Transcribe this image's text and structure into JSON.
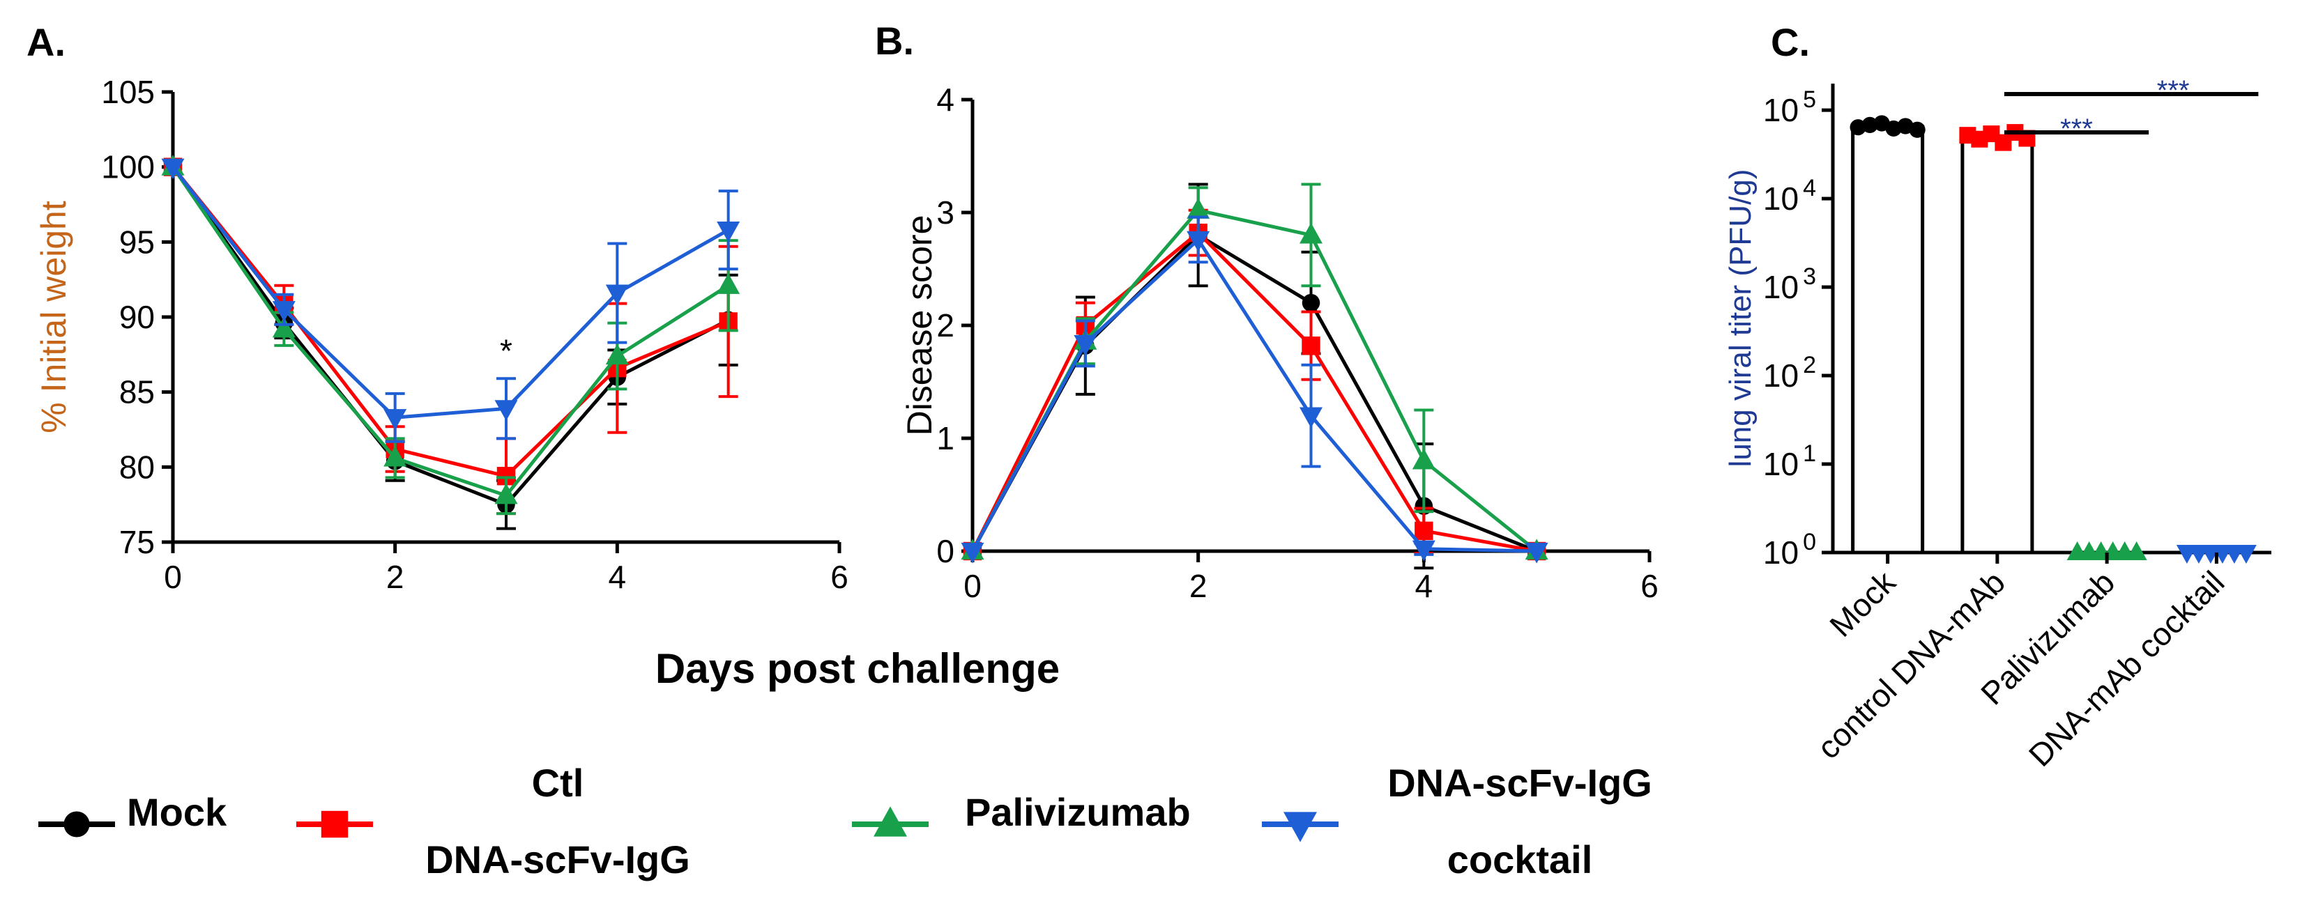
{
  "shared_xlabel": "Days post challenge",
  "legend": [
    {
      "key": "mock",
      "lines": [
        "Mock"
      ],
      "color": "#000000",
      "marker": "circle"
    },
    {
      "key": "ctl",
      "lines": [
        "Ctl",
        "DNA-scFv-IgG"
      ],
      "color": "#ff0000",
      "marker": "square"
    },
    {
      "key": "pali",
      "lines": [
        "Palivizumab"
      ],
      "color": "#18a04a",
      "marker": "triangle-up"
    },
    {
      "key": "cocktail",
      "lines": [
        "DNA-scFv-IgG",
        "cocktail"
      ],
      "color": "#1f5fd6",
      "marker": "triangle-down"
    }
  ],
  "chart_data": [
    {
      "panel": "A.",
      "type": "line",
      "ylabel": "% Initial weight",
      "ylabel_color": "#c4651a",
      "xlabel": "Days post challenge",
      "xlim": [
        0,
        6
      ],
      "ylim": [
        75,
        105
      ],
      "xticks": [
        0,
        2,
        4,
        6
      ],
      "yticks": [
        75,
        80,
        85,
        90,
        95,
        100,
        105
      ],
      "annotations": [
        {
          "text": "*",
          "x": 3,
          "y": 87
        }
      ],
      "x": [
        0,
        1,
        2,
        3,
        4,
        5
      ],
      "series": [
        {
          "name": "Mock",
          "color": "#000000",
          "marker": "circle",
          "values": [
            100,
            89.6,
            80.4,
            77.5,
            86.0,
            89.8
          ],
          "err": [
            0,
            1.0,
            1.3,
            1.6,
            1.8,
            3.0
          ]
        },
        {
          "name": "Ctl DNA-scFv-IgG",
          "color": "#ff0000",
          "marker": "square",
          "values": [
            100,
            90.8,
            81.2,
            79.4,
            86.6,
            89.7
          ],
          "err": [
            0,
            1.3,
            1.5,
            2.5,
            4.3,
            5.0
          ]
        },
        {
          "name": "Palivizumab",
          "color": "#18a04a",
          "marker": "triangle-up",
          "values": [
            100,
            89.2,
            80.6,
            78.1,
            87.4,
            92.1
          ],
          "err": [
            0,
            1.1,
            1.3,
            1.2,
            2.2,
            3.0
          ]
        },
        {
          "name": "DNA-scFv-IgG cocktail",
          "color": "#1f5fd6",
          "marker": "triangle-down",
          "values": [
            100,
            90.5,
            83.3,
            83.9,
            91.6,
            95.8
          ],
          "err": [
            0,
            1.0,
            1.6,
            2.0,
            3.3,
            2.6
          ]
        }
      ]
    },
    {
      "panel": "B.",
      "type": "line",
      "ylabel": "Disease score",
      "ylabel_color": "#000000",
      "xlabel": "Days post challenge",
      "xlim": [
        0,
        6
      ],
      "ylim": [
        0,
        4
      ],
      "xticks": [
        0,
        2,
        4,
        6
      ],
      "yticks": [
        0,
        1,
        2,
        3,
        4
      ],
      "x": [
        0,
        1,
        2,
        3,
        4,
        5
      ],
      "series": [
        {
          "name": "Mock",
          "color": "#000000",
          "marker": "circle",
          "values": [
            0,
            1.82,
            2.8,
            2.2,
            0.4,
            0
          ],
          "err": [
            0,
            0.43,
            0.45,
            0.45,
            0.55,
            0
          ]
        },
        {
          "name": "Ctl DNA-scFv-IgG",
          "color": "#ff0000",
          "marker": "square",
          "values": [
            0,
            2.0,
            2.82,
            1.82,
            0.18,
            0
          ],
          "err": [
            0,
            0.2,
            0.2,
            0.3,
            0.2,
            0
          ]
        },
        {
          "name": "Palivizumab",
          "color": "#18a04a",
          "marker": "triangle-up",
          "values": [
            0,
            1.86,
            3.02,
            2.8,
            0.8,
            0
          ],
          "err": [
            0,
            0.2,
            0.2,
            0.45,
            0.45,
            0
          ]
        },
        {
          "name": "DNA-scFv-IgG cocktail",
          "color": "#1f5fd6",
          "marker": "triangle-down",
          "values": [
            0,
            1.84,
            2.76,
            1.2,
            0.02,
            0
          ],
          "err": [
            0,
            0.2,
            0.2,
            0.45,
            0.05,
            0
          ]
        }
      ]
    },
    {
      "panel": "C.",
      "type": "bar",
      "ylabel": "lung viral titer (PFU/g)",
      "ylabel_color": "#1f3a93",
      "yscale": "log",
      "ylim_exponent": [
        0,
        5.3
      ],
      "ytick_exponents": [
        0,
        1,
        2,
        3,
        4,
        5
      ],
      "ytick_base": "10",
      "categories": [
        "Mock",
        "control DNA-mAb",
        "Palivizumab",
        "DNA-mAb cocktail"
      ],
      "values": [
        65000,
        50000,
        1,
        1
      ],
      "colors": [
        "#000000",
        "#ff0000",
        "#18a04a",
        "#1f5fd6"
      ],
      "markers": [
        "circle",
        "square",
        "triangle-up",
        "triangle-down"
      ],
      "points": [
        [
          64000,
          68000,
          71000,
          62000,
          66000,
          60000
        ],
        [
          52000,
          47000,
          54000,
          43000,
          56000,
          48000
        ],
        [
          1,
          1,
          1,
          1,
          1,
          1
        ],
        [
          1,
          1,
          1,
          1,
          1,
          1
        ]
      ],
      "significance": [
        {
          "from": "control DNA-mAb",
          "to": "DNA-mAb cocktail",
          "label": "***"
        },
        {
          "from": "control DNA-mAb",
          "to": "Palivizumab",
          "label": "***"
        }
      ]
    }
  ]
}
